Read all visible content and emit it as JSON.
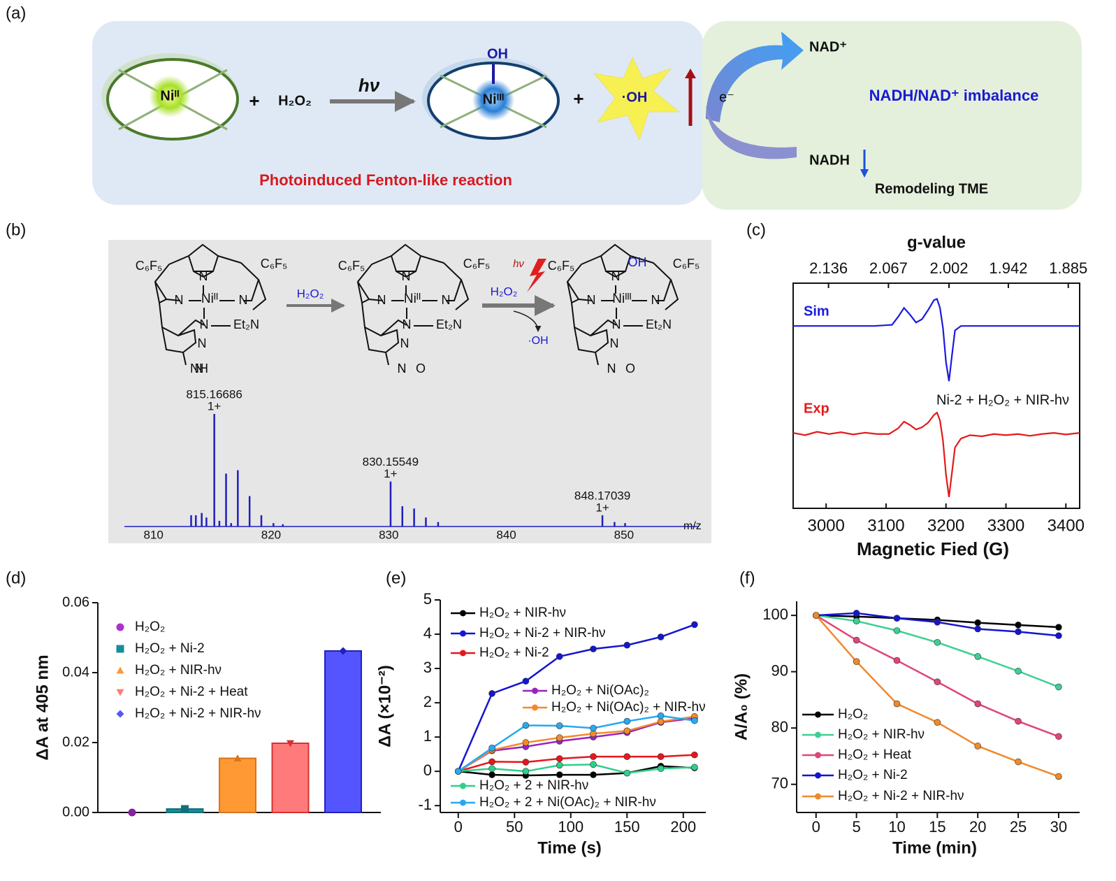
{
  "panel_labels": [
    "(a)",
    "(b)",
    "(c)",
    "(d)",
    "(e)",
    "(f)"
  ],
  "scheme_a": {
    "reactant_metal": "Niᴵᴵ",
    "plus_1": "+",
    "oxidant": "H₂O₂",
    "light": "hν",
    "product_ligand": "OH",
    "product_metal": "Niᴵᴵᴵ",
    "plus_2": "+",
    "radical": "·OH",
    "caption": "Photoinduced Fenton-like reaction",
    "electron": "e⁻",
    "oxidized": "NAD⁺",
    "reduced": "NADH",
    "effect": "NADH/NAD⁺  imbalance",
    "outcome": "Remodeling TME"
  },
  "scheme_b": {
    "structures": [
      {
        "labels": [
          "C₆F₅",
          "C₆F₅",
          "N",
          "N",
          "Niᴵᴵ",
          "N",
          "N",
          "N",
          "Et₂N",
          "N",
          "NH"
        ]
      },
      {
        "labels": [
          "C₆F₅",
          "C₆F₅",
          "N",
          "N",
          "Niᴵᴵ",
          "N",
          "N",
          "N",
          "Et₂N",
          "N",
          "N",
          "O"
        ]
      },
      {
        "labels": [
          "C₆F₅",
          "C₆F₅",
          "N",
          "N",
          "Niᴵᴵᴵ",
          "N",
          "N",
          "N",
          "Et₂N",
          "N",
          "N",
          "O",
          "OH"
        ]
      }
    ],
    "step_1": "H₂O₂",
    "step_2_light": "hν",
    "step_2": "H₂O₂",
    "byproduct": "·OH"
  },
  "chart_data": [
    {
      "type": "stem",
      "xlabel": "m/z",
      "color": "#1f1fbf",
      "x": [
        813.2,
        813.6,
        814.1,
        814.5,
        815.17,
        815.6,
        816.17,
        816.6,
        817.17,
        818.17,
        819.17,
        820.2,
        821.0,
        830.16,
        831.16,
        832.16,
        833.16,
        834.2,
        848.17,
        849.2,
        850.1
      ],
      "values": [
        0.1,
        0.1,
        0.12,
        0.08,
        1.0,
        0.05,
        0.47,
        0.03,
        0.5,
        0.27,
        0.1,
        0.03,
        0.02,
        0.4,
        0.18,
        0.16,
        0.08,
        0.04,
        0.1,
        0.04,
        0.03
      ],
      "xlim": [
        808,
        855
      ],
      "ylim": [
        0,
        1
      ],
      "xticks": [
        810,
        820,
        830,
        840,
        850
      ],
      "annotations": [
        {
          "x": 815.16686,
          "text": "1+"
        },
        {
          "x": 830.15549,
          "text": "1+"
        },
        {
          "x": 848.17039,
          "text": "1+"
        }
      ]
    },
    {
      "type": "line",
      "xlabel": "Magnetic Fied (G)",
      "x2label": "g-value",
      "annotation": "Ni-2 + H₂O₂ + NIR-hν",
      "xlim": [
        2945,
        3423
      ],
      "ylim": [
        0,
        10
      ],
      "xticks": [
        3000,
        3100,
        3200,
        3300,
        3400
      ],
      "x2ticks": [
        {
          "value": 3004,
          "label": "2.136"
        },
        {
          "value": 3104,
          "label": "2.067"
        },
        {
          "value": 3205,
          "label": "2.002"
        },
        {
          "value": 3304,
          "label": "1.942"
        },
        {
          "value": 3404,
          "label": "1.885"
        }
      ],
      "series": [
        {
          "name": "Sim",
          "color": "#1a1adf",
          "x": [
            2945,
            3080,
            3110,
            3120,
            3130,
            3140,
            3150,
            3160,
            3170,
            3180,
            3185,
            3190,
            3195,
            3200,
            3205,
            3210,
            3215,
            3225,
            3423
          ],
          "values": [
            8.1,
            8.1,
            8.15,
            8.5,
            8.9,
            8.6,
            8.25,
            8.4,
            8.8,
            9.25,
            9.3,
            8.9,
            8.0,
            6.5,
            5.65,
            6.8,
            7.9,
            8.1,
            8.1
          ]
        },
        {
          "name": "Exp",
          "color": "#e31a1a",
          "x": [
            2945,
            2965,
            2985,
            3005,
            3025,
            3045,
            3065,
            3085,
            3105,
            3120,
            3130,
            3140,
            3150,
            3160,
            3170,
            3180,
            3185,
            3190,
            3195,
            3200,
            3205,
            3210,
            3215,
            3225,
            3240,
            3260,
            3280,
            3300,
            3320,
            3340,
            3360,
            3380,
            3400,
            3423
          ],
          "values": [
            3.35,
            3.25,
            3.4,
            3.3,
            3.38,
            3.28,
            3.36,
            3.3,
            3.3,
            3.55,
            3.85,
            3.7,
            3.5,
            3.6,
            3.8,
            4.15,
            4.25,
            3.9,
            3.0,
            1.5,
            0.5,
            1.6,
            2.7,
            3.1,
            3.25,
            3.2,
            3.3,
            3.25,
            3.3,
            3.22,
            3.3,
            3.35,
            3.28,
            3.35
          ]
        }
      ]
    },
    {
      "type": "bar",
      "ylabel": "ΔA at 405 nm",
      "ylim": [
        0,
        0.06
      ],
      "yticks": [
        {
          "value": 0,
          "label": "0.00"
        },
        {
          "value": 0.02,
          "label": "0.02"
        },
        {
          "value": 0.04,
          "label": "0.04"
        },
        {
          "value": 0.06,
          "label": "0.06"
        }
      ],
      "series": [
        {
          "name": "H₂O₂",
          "color": "#b02fd0",
          "marker": "circle",
          "values": [
            0
          ]
        },
        {
          "name": "H₂O₂ + Ni-2",
          "color": "#1a8c99",
          "marker": "square",
          "values": [
            0.001
          ]
        },
        {
          "name": "H₂O₂ + NIR-hν",
          "color": "#ff9933",
          "marker": "triangle-up",
          "values": [
            0.0155
          ]
        },
        {
          "name": "H₂O₂ + Ni-2 + Heat",
          "color": "#ff7b7b",
          "marker": "triangle-down",
          "values": [
            0.0198
          ]
        },
        {
          "name": "H₂O₂ + Ni-2 + NIR-hν",
          "color": "#5555ff",
          "marker": "diamond",
          "values": [
            0.0462
          ]
        }
      ]
    },
    {
      "type": "line",
      "xlabel": "Time (s)",
      "ylabel": "ΔA (×10⁻²)",
      "xlim": [
        -16,
        220
      ],
      "ylim": [
        -1.2,
        5
      ],
      "xticks": [
        0,
        50,
        100,
        150,
        200
      ],
      "yticks": [
        -1,
        0,
        1,
        2,
        3,
        4,
        5
      ],
      "x": [
        0,
        30,
        60,
        90,
        120,
        150,
        180,
        210
      ],
      "series": [
        {
          "name": "H₂O₂ + NIR-hν",
          "color": "#000000",
          "values": [
            0,
            -0.1,
            -0.12,
            -0.1,
            -0.1,
            -0.05,
            0.15,
            0.1
          ]
        },
        {
          "name": "H₂O₂ + Ni-2 + NIR-hν",
          "color": "#1515d0",
          "values": [
            0,
            2.27,
            2.63,
            3.35,
            3.57,
            3.68,
            3.92,
            4.28
          ]
        },
        {
          "name": "H₂O₂ + Ni-2",
          "color": "#e8161b",
          "values": [
            0,
            0.28,
            0.27,
            0.37,
            0.43,
            0.43,
            0.43,
            0.48
          ]
        },
        {
          "name": "H₂O₂ + Ni(OAc)₂",
          "color": "#9b22c0",
          "values": [
            0,
            0.6,
            0.72,
            0.88,
            1.0,
            1.13,
            1.43,
            1.55
          ]
        },
        {
          "name": "H₂O₂ + Ni(OAc)₂ + NIR-hν",
          "color": "#f5892a",
          "values": [
            0,
            0.62,
            0.84,
            0.98,
            1.1,
            1.18,
            1.45,
            1.6
          ]
        },
        {
          "name": "H₂O₂ + 2 + NIR-hν",
          "color": "#2ecf8b",
          "values": [
            0,
            0.08,
            0.0,
            0.18,
            0.2,
            -0.05,
            0.08,
            0.12
          ]
        },
        {
          "name": "H₂O₂ + 2 + Ni(OAc)₂ + NIR-hν",
          "color": "#27a9f0",
          "values": [
            0,
            0.68,
            1.34,
            1.33,
            1.26,
            1.46,
            1.62,
            1.48
          ]
        }
      ]
    },
    {
      "type": "line",
      "xlabel": "Time (min)",
      "ylabel": "A/A₀ (%)",
      "xlim": [
        -2.4,
        32.6
      ],
      "ylim": [
        65,
        102.5
      ],
      "xticks": [
        0,
        5,
        10,
        15,
        20,
        25,
        30
      ],
      "yticks": [
        70,
        80,
        90,
        100
      ],
      "x": [
        0,
        5,
        10,
        15,
        20,
        25,
        30
      ],
      "series": [
        {
          "name": "H₂O₂",
          "color": "#000000",
          "values": [
            100,
            99.8,
            99.5,
            99.2,
            98.7,
            98.3,
            97.9
          ]
        },
        {
          "name": "H₂O₂ + NIR-hν",
          "color": "#3ecf94",
          "values": [
            100,
            99,
            97.3,
            95.2,
            92.7,
            90.1,
            87.3
          ]
        },
        {
          "name": "H₂O₂ + Heat",
          "color": "#e0457a",
          "values": [
            100,
            95.6,
            92,
            88.2,
            84.3,
            81.2,
            78.5
          ]
        },
        {
          "name": "H₂O₂ + Ni-2",
          "color": "#1515d0",
          "values": [
            100,
            100.4,
            99.5,
            98.8,
            97.6,
            97.1,
            96.4
          ]
        },
        {
          "name": "H₂O₂ + Ni-2 + NIR-hν",
          "color": "#ef8a2c",
          "values": [
            100,
            91.8,
            84.3,
            81,
            76.8,
            74,
            71.4
          ]
        }
      ]
    }
  ]
}
